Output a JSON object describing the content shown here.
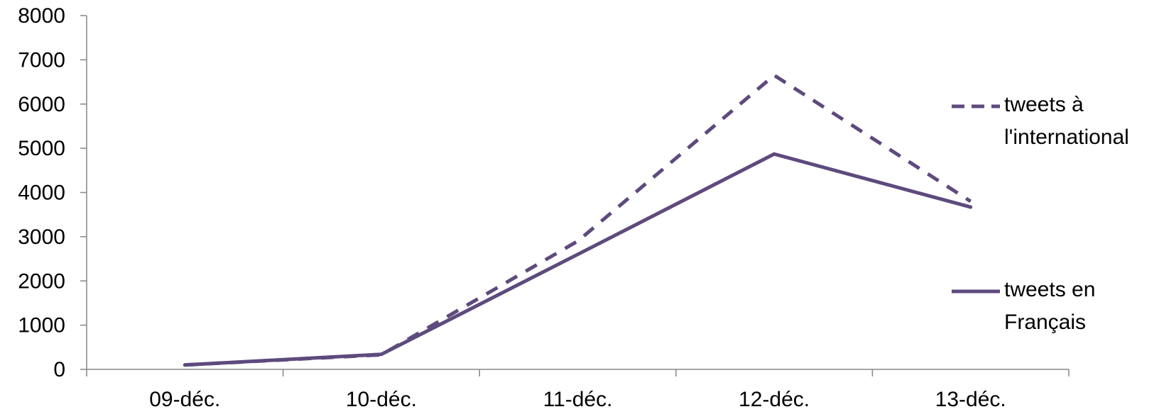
{
  "chart_data": {
    "type": "line",
    "categories": [
      "09-déc.",
      "10-déc.",
      "11-déc.",
      "12-déc.",
      "13-déc."
    ],
    "series": [
      {
        "name": "tweets à l'international",
        "name_lines": [
          "tweets à",
          "l'international"
        ],
        "style": "dashed",
        "color": "#5e4a7d",
        "values": [
          100,
          330,
          2900,
          6650,
          3800
        ]
      },
      {
        "name": "tweets en Français",
        "name_lines": [
          "tweets en",
          "Français"
        ],
        "style": "solid",
        "color": "#5e4a7d",
        "values": [
          100,
          340,
          2600,
          4870,
          3670
        ]
      }
    ],
    "y_ticks": [
      0,
      1000,
      2000,
      3000,
      4000,
      5000,
      6000,
      7000,
      8000
    ],
    "ylim": [
      0,
      8000
    ],
    "grid": false,
    "legend_position": "right",
    "axis_color": "#868686"
  }
}
